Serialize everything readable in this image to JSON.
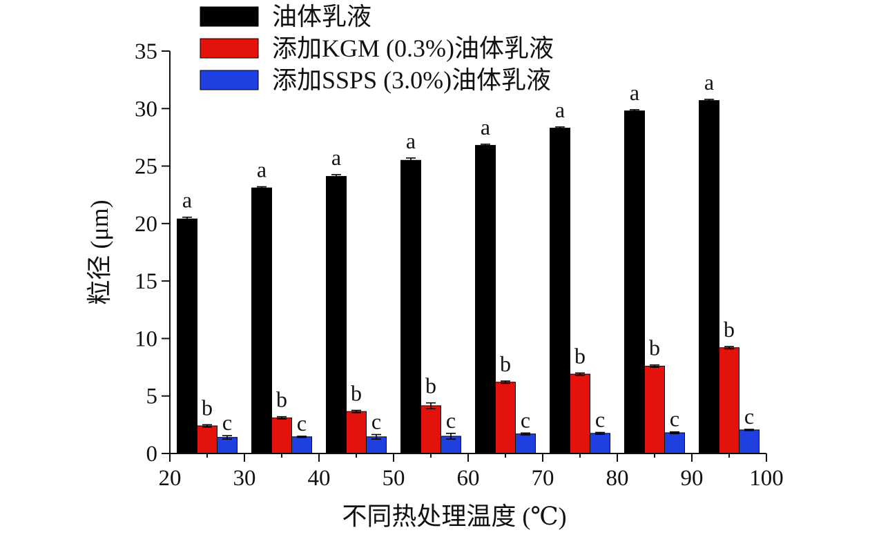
{
  "chart_data": {
    "type": "bar",
    "title": "",
    "xlabel": "不同热处理温度 (℃)",
    "ylabel": "粒径 (μm)",
    "x_ticks": [
      "20",
      "30",
      "40",
      "50",
      "60",
      "70",
      "80",
      "90",
      "100"
    ],
    "y_ticks": [
      "0",
      "5",
      "10",
      "15",
      "20",
      "25",
      "30",
      "35"
    ],
    "ylim": [
      0,
      35
    ],
    "xlim": [
      20,
      100
    ],
    "group_centers": [
      25,
      35,
      45,
      55,
      65,
      75,
      85,
      95
    ],
    "legend_position": "top-left",
    "series": [
      {
        "name": "油体乳液",
        "color": "#000000",
        "values": [
          20.4,
          23.1,
          24.1,
          25.5,
          26.8,
          28.3,
          29.8,
          30.7
        ],
        "errors": [
          0.15,
          0.1,
          0.15,
          0.2,
          0.1,
          0.1,
          0.1,
          0.1
        ],
        "labels": [
          "a",
          "a",
          "a",
          "a",
          "a",
          "a",
          "a",
          "a"
        ]
      },
      {
        "name": "添加KGM (0.3%)油体乳液",
        "color": "#e3120b",
        "values": [
          2.4,
          3.1,
          3.65,
          4.15,
          6.2,
          6.9,
          7.6,
          9.2
        ],
        "errors": [
          0.1,
          0.1,
          0.1,
          0.25,
          0.1,
          0.1,
          0.1,
          0.1
        ],
        "labels": [
          "b",
          "b",
          "b",
          "b",
          "b",
          "b",
          "b",
          "b"
        ]
      },
      {
        "name": "添加SSPS (3.0%)油体乳液",
        "color": "#1f3fe0",
        "values": [
          1.4,
          1.45,
          1.45,
          1.5,
          1.7,
          1.75,
          1.8,
          2.05
        ],
        "errors": [
          0.15,
          0.05,
          0.2,
          0.25,
          0.08,
          0.08,
          0.08,
          0.05
        ],
        "labels": [
          "c",
          "c",
          "c",
          "c",
          "c",
          "c",
          "c",
          "c"
        ]
      }
    ]
  }
}
